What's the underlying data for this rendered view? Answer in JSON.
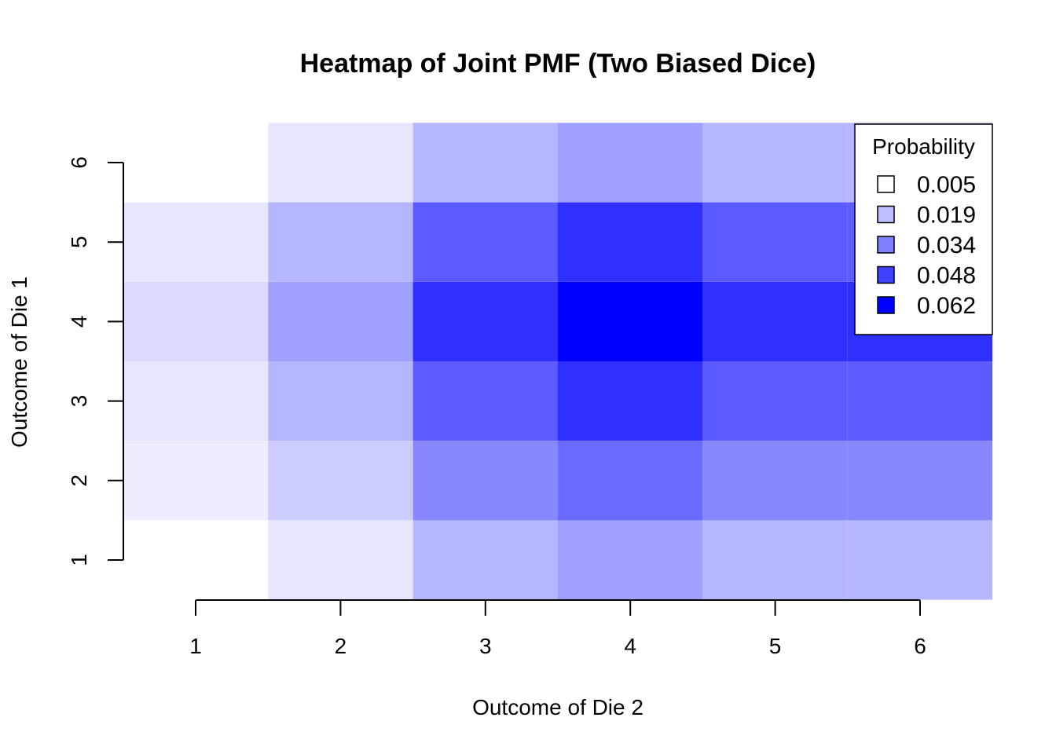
{
  "chart_data": {
    "type": "heatmap",
    "title": "Heatmap of Joint PMF (Two Biased Dice)",
    "xlabel": "Outcome of Die 2",
    "ylabel": "Outcome of Die 1",
    "x": [
      1,
      2,
      3,
      4,
      5,
      6
    ],
    "y": [
      1,
      2,
      3,
      4,
      5,
      6
    ],
    "x_tick_labels": [
      "1",
      "2",
      "3",
      "4",
      "5",
      "6"
    ],
    "y_tick_labels": [
      "1",
      "2",
      "3",
      "4",
      "5",
      "6"
    ],
    "values_by_row_die1": [
      [
        0.005,
        0.012,
        0.025,
        0.031,
        0.025,
        0.025
      ],
      [
        0.01,
        0.019,
        0.038,
        0.046,
        0.038,
        0.038
      ],
      [
        0.012,
        0.025,
        0.05,
        0.062,
        0.05,
        0.05
      ],
      [
        0.015,
        0.031,
        0.062,
        0.075,
        0.062,
        0.062
      ],
      [
        0.012,
        0.025,
        0.05,
        0.062,
        0.05,
        0.05
      ],
      [
        0.005,
        0.012,
        0.025,
        0.031,
        0.025,
        0.025
      ]
    ],
    "color_scale": {
      "low": "#ffffff",
      "high": "#0000ff"
    },
    "legend": {
      "title": "Probability",
      "placement": "top-right",
      "entries": [
        {
          "label": "0.005",
          "color": "#ffffff"
        },
        {
          "label": "0.019",
          "color": "#bfbfff"
        },
        {
          "label": "0.034",
          "color": "#8080ff"
        },
        {
          "label": "0.048",
          "color": "#4040ff"
        },
        {
          "label": "0.062",
          "color": "#0000ff"
        }
      ]
    }
  }
}
